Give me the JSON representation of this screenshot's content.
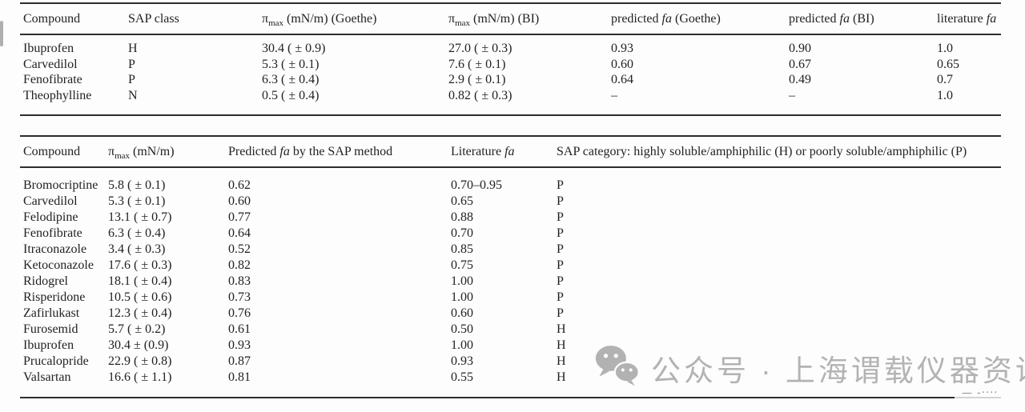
{
  "colors": {
    "background": "#fdfdfd",
    "text": "#222222",
    "rule": "#2d2d2d",
    "watermark_gray": "#b3b3b3"
  },
  "table1": {
    "columns": [
      "Compound",
      "SAP class",
      "π_{max} (mN/m) (Goethe)",
      "π_{max} (mN/m) (BI)",
      "predicted *fa* (Goethe)",
      "predicted *fa* (BI)",
      "literature *fa*"
    ],
    "rows": [
      [
        "Ibuprofen",
        "H",
        "30.4 ( ± 0.9)",
        "27.0 ( ± 0.3)",
        "0.93",
        "0.90",
        "1.0"
      ],
      [
        "Carvedilol",
        "P",
        "5.3 ( ± 0.1)",
        "7.6 ( ± 0.1)",
        "0.60",
        "0.67",
        "0.65"
      ],
      [
        "Fenofibrate",
        "P",
        "6.3 ( ± 0.4)",
        "2.9 ( ± 0.1)",
        "0.64",
        "0.49",
        "0.7"
      ],
      [
        "Theophylline",
        "N",
        "0.5 ( ± 0.4)",
        "0.82 ( ± 0.3)",
        "–",
        "–",
        "1.0"
      ]
    ]
  },
  "table2": {
    "columns": [
      "Compound",
      "π_{max} (mN/m)",
      "Predicted *fa* by the SAP method",
      "Literature *fa*",
      "SAP category: highly soluble/amphiphilic (H) or poorly soluble/amphiphilic (P)"
    ],
    "rows": [
      [
        "Bromocriptine",
        "5.8 ( ± 0.1)",
        "0.62",
        "0.70–0.95",
        "P"
      ],
      [
        "Carvedilol",
        "5.3 ( ± 0.1)",
        "0.60",
        "0.65",
        "P"
      ],
      [
        "Felodipine",
        "13.1 ( ± 0.7)",
        "0.77",
        "0.88",
        "P"
      ],
      [
        "Fenofibrate",
        "6.3 ( ± 0.4)",
        "0.64",
        "0.70",
        "P"
      ],
      [
        "Itraconazole",
        "3.4 ( ± 0.3)",
        "0.52",
        "0.85",
        "P"
      ],
      [
        "Ketoconazole",
        "17.6 ( ± 0.3)",
        "0.82",
        "0.75",
        "P"
      ],
      [
        "Ridogrel",
        "18.1 ( ± 0.4)",
        "0.83",
        "1.00",
        "P"
      ],
      [
        "Risperidone",
        "10.5 ( ± 0.6)",
        "0.73",
        "1.00",
        "P"
      ],
      [
        "Zafirlukast",
        "12.3 ( ± 0.4)",
        "0.76",
        "0.60",
        "P"
      ],
      [
        "Furosemid",
        "5.7 ( ± 0.2)",
        "0.61",
        "0.50",
        "H"
      ],
      [
        "Ibuprofen",
        "30.4 ± (0.9)",
        "0.93",
        "1.00",
        "H"
      ],
      [
        "Prucalopride",
        "22.9 ( ± 0.8)",
        "0.87",
        "0.93",
        "H"
      ],
      [
        "Valsartan",
        "16.6 ( ± 1.1)",
        "0.81",
        "0.55",
        "H"
      ]
    ]
  },
  "watermark": {
    "icon": "wechat-icon",
    "text": "公众号 · 上海谓载仪器资讯"
  },
  "artifacts": {
    "rule_end_dashes": "— -····"
  }
}
